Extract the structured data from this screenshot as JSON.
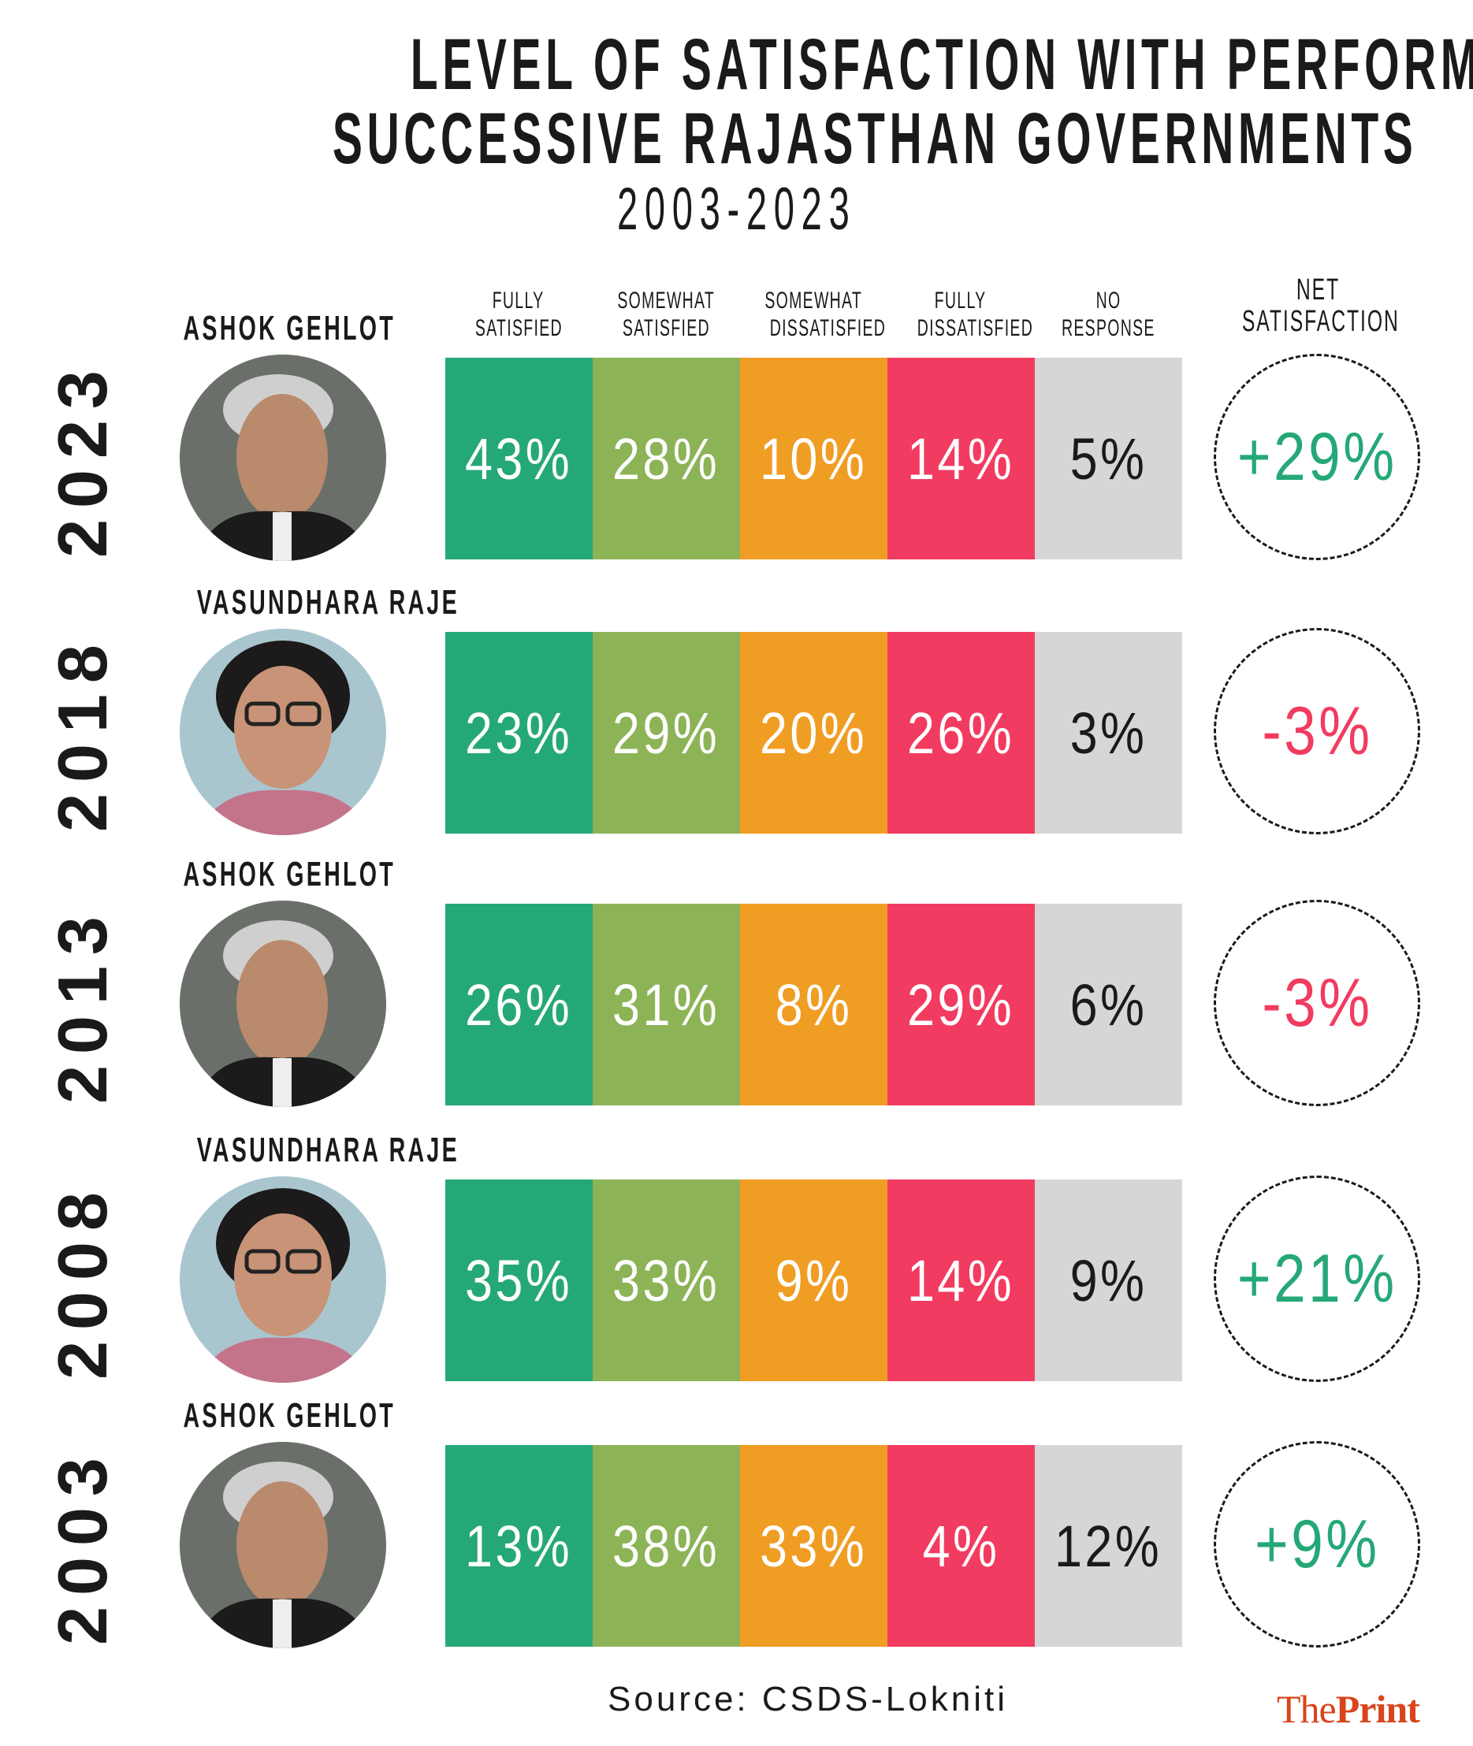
{
  "title": {
    "line1": "LEVEL OF SATISFACTION WITH PERFORMANCES OF",
    "line2": "SUCCESSIVE RAJASTHAN GOVERNMENTS",
    "line3": "2003-2023"
  },
  "columns": [
    {
      "line1": "FULLY",
      "line2": "SATISFIED"
    },
    {
      "line1": "SOMEWHAT",
      "line2": "SATISFIED"
    },
    {
      "line1": "SOMEWHAT",
      "line2": "DISSATISFIED"
    },
    {
      "line1": "FULLY",
      "line2": "DISSATISFIED"
    },
    {
      "line1": "NO",
      "line2": "RESPONSE"
    }
  ],
  "net_header": {
    "line1": "NET",
    "line2": "SATISFACTION"
  },
  "colors": {
    "fully_satisfied": "#25a877",
    "somewhat_satisfied": "#8db357",
    "somewhat_dissatisfied": "#f09d24",
    "fully_dissatisfied": "#f23b60",
    "no_response": "#d6d6d6",
    "net_positive": "#25a877",
    "net_negative": "#f23b60"
  },
  "chart_data": {
    "type": "table",
    "categories": [
      "Fully satisfied",
      "Somewhat satisfied",
      "Somewhat dissatisfied",
      "Fully dissatisfied",
      "No response"
    ],
    "rows": [
      {
        "year": "2023",
        "name": "ASHOK GEHLOT",
        "values": [
          "43%",
          "28%",
          "10%",
          "14%",
          "5%"
        ],
        "net": "+29%"
      },
      {
        "year": "2018",
        "name": "VASUNDHARA RAJE",
        "values": [
          "23%",
          "29%",
          "20%",
          "26%",
          "3%"
        ],
        "net": "-3%"
      },
      {
        "year": "2013",
        "name": "ASHOK GEHLOT",
        "values": [
          "26%",
          "31%",
          "8%",
          "29%",
          "6%"
        ],
        "net": "-3%"
      },
      {
        "year": "2008",
        "name": "VASUNDHARA RAJE",
        "values": [
          "35%",
          "33%",
          "9%",
          "14%",
          "9%"
        ],
        "net": "+21%"
      },
      {
        "year": "2003",
        "name": "ASHOK GEHLOT",
        "values": [
          "13%",
          "38%",
          "33%",
          "4%",
          "12%"
        ],
        "net": "+9%"
      }
    ]
  },
  "source": "Source: CSDS-Lokniti",
  "logo": {
    "part1": "The",
    "part2": "Print"
  }
}
